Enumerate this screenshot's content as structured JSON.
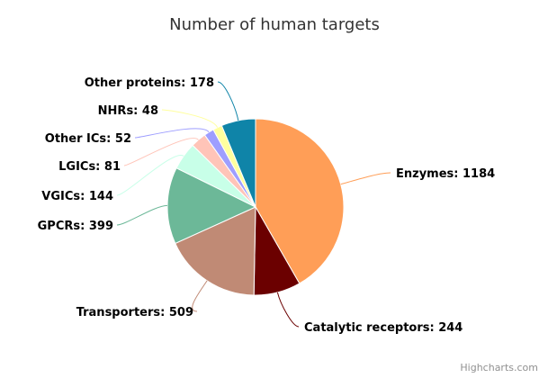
{
  "chart_data": {
    "type": "pie",
    "title": "Number of human targets",
    "credit": "Highcharts.com",
    "slices": [
      {
        "name": "Enzymes",
        "value": 1184,
        "color": "#ff9e57"
      },
      {
        "name": "Catalytic receptors",
        "value": 244,
        "color": "#6b0000"
      },
      {
        "name": "Transporters",
        "value": 509,
        "color": "#c08a75"
      },
      {
        "name": "GPCRs",
        "value": 399,
        "color": "#6cb898"
      },
      {
        "name": "VGICs",
        "value": 144,
        "color": "#c8ffe8"
      },
      {
        "name": "LGICs",
        "value": 81,
        "color": "#ffc4b8"
      },
      {
        "name": "Other ICs",
        "value": 52,
        "color": "#9e9eff"
      },
      {
        "name": "NHRs",
        "value": 48,
        "color": "#ffff9e"
      },
      {
        "name": "Other proteins",
        "value": 178,
        "color": "#0f84a8"
      }
    ]
  }
}
